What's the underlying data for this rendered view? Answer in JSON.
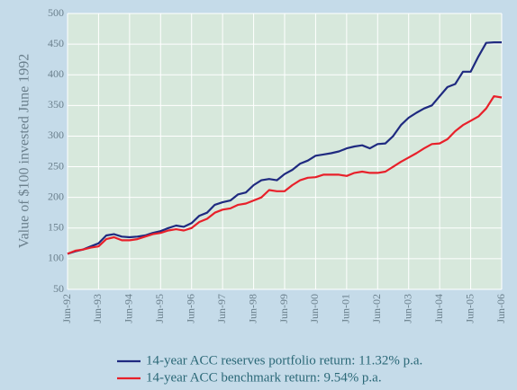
{
  "chart_data": {
    "type": "line",
    "y_label": "Value of $100 invested June 1992",
    "categories": [
      "Jun-92",
      null,
      null,
      null,
      "Jun-93",
      null,
      null,
      null,
      "Jun-94",
      null,
      null,
      null,
      "Jun-95",
      null,
      null,
      null,
      "Jun-96",
      null,
      null,
      null,
      "Jun-97",
      null,
      null,
      null,
      "Jun-98",
      null,
      null,
      null,
      "Jun-99",
      null,
      null,
      null,
      "Jun-00",
      null,
      null,
      null,
      "Jun-01",
      null,
      null,
      null,
      "Jun-02",
      null,
      null,
      null,
      "Jun-03",
      null,
      null,
      null,
      "Jun-04",
      null,
      null,
      null,
      "Jun-05",
      null,
      null,
      null,
      "Jun-06"
    ],
    "series": [
      {
        "name": "14-year ACC reserves portfolio return: 11.32% p.a.",
        "color": "#1f2a80",
        "values": [
          108,
          112,
          115,
          120,
          125,
          138,
          140,
          136,
          135,
          136,
          138,
          142,
          145,
          150,
          154,
          152,
          158,
          170,
          175,
          188,
          192,
          195,
          205,
          208,
          220,
          228,
          230,
          228,
          238,
          245,
          255,
          260,
          268,
          270,
          272,
          275,
          280,
          283,
          285,
          280,
          287,
          288,
          300,
          318,
          330,
          338,
          345,
          350,
          365,
          380,
          385,
          405,
          405,
          430,
          452,
          453,
          453
        ]
      },
      {
        "name": "14-year ACC benchmark return: 9.54% p.a.",
        "color": "#e8202a",
        "values": [
          108,
          113,
          115,
          118,
          120,
          132,
          135,
          130,
          130,
          132,
          136,
          140,
          142,
          146,
          148,
          146,
          150,
          160,
          165,
          175,
          180,
          182,
          188,
          190,
          195,
          200,
          212,
          210,
          210,
          220,
          228,
          232,
          233,
          237,
          237,
          237,
          235,
          240,
          242,
          240,
          240,
          242,
          250,
          258,
          265,
          272,
          280,
          287,
          288,
          295,
          308,
          318,
          325,
          332,
          345,
          365,
          363
        ]
      }
    ],
    "ylim": [
      50,
      500
    ],
    "yticks": [
      50,
      100,
      150,
      200,
      250,
      300,
      350,
      400,
      450,
      500
    ],
    "grid": true
  }
}
